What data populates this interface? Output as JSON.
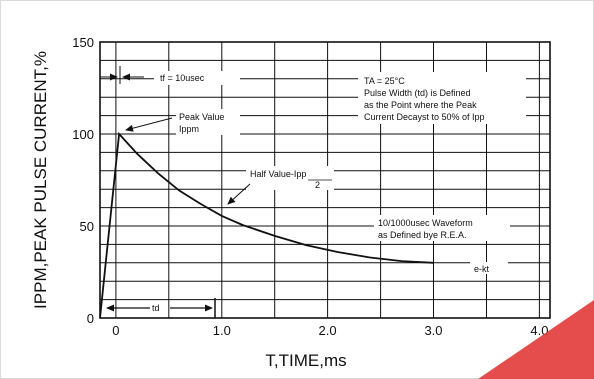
{
  "chart_data": {
    "type": "line",
    "xlabel": "T,TIME,ms",
    "ylabel": "IPPM,PEAK PULSE CURRENT,%",
    "xlim": [
      -0.15,
      4.1
    ],
    "ylim": [
      0,
      150
    ],
    "x_ticks": [
      0,
      1.0,
      2.0,
      3.0,
      4.0
    ],
    "x_tick_labels": [
      "0",
      "1.0",
      "2.0",
      "3.0",
      "4.0"
    ],
    "y_ticks": [
      0,
      50,
      100,
      150
    ],
    "y_tick_labels": [
      "0",
      "50",
      "100",
      "150"
    ],
    "grid": true,
    "series": [
      {
        "x": [
          -0.15,
          0.03,
          0.2,
          0.4,
          0.6,
          0.8,
          1.0,
          1.2,
          1.5,
          1.8,
          2.1,
          2.4,
          2.7,
          3.0
        ],
        "values": [
          0,
          100,
          89.3,
          78.6,
          69.2,
          62,
          55.5,
          50.5,
          44.6,
          39.5,
          35.8,
          32.9,
          30.9,
          30
        ]
      }
    ],
    "annotations": {
      "tf": "tf = 10usec",
      "conditions": [
        "TA = 25°C",
        "Pulse Width (td) is Defined",
        "as the Point where the Peak",
        "Current Decayst to 50% of Ipp"
      ],
      "peak": [
        "Peak Value",
        "Ippm"
      ],
      "half_value": "Half Value-Ipp",
      "half_value_den": "2",
      "waveform": [
        "10/1000usec Waveform",
        "as Defined bye R.E.A."
      ],
      "decay": "e-kt",
      "td": "td"
    }
  }
}
